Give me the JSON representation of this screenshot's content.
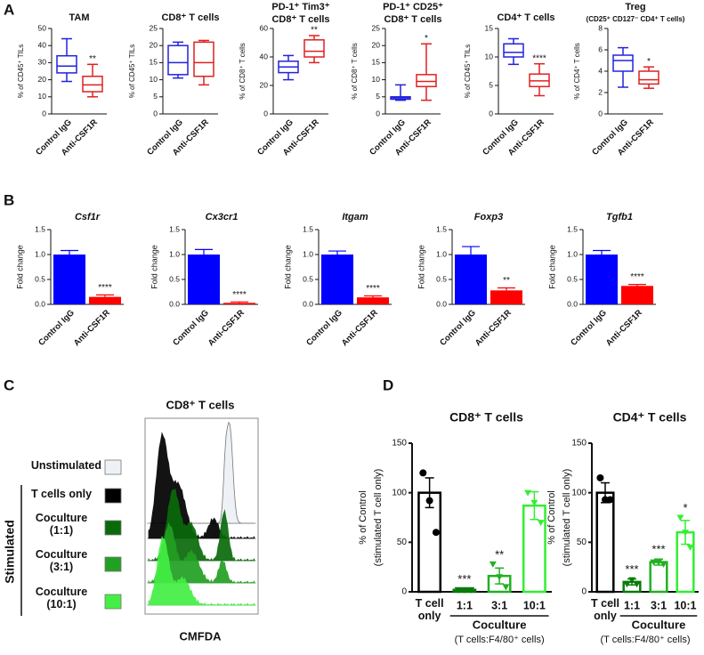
{
  "panel_labels": [
    "A",
    "B",
    "C",
    "D"
  ],
  "chart_data": [
    {
      "type": "box",
      "title": [
        "TAM"
      ],
      "y_label": "% of CD45⁺ TILs",
      "categories": [
        "Control IgG",
        "Anti-CSF1R"
      ],
      "colors": [
        "#2222dd",
        "#e02020"
      ],
      "boxes": [
        {
          "min": 19,
          "q1": 24,
          "median": 28,
          "q3": 34,
          "max": 44
        },
        {
          "min": 10,
          "q1": 13,
          "median": 17,
          "q3": 22,
          "max": 29
        }
      ],
      "significance": [
        null,
        "**"
      ],
      "ylim": [
        0,
        50
      ],
      "yticks": [
        0,
        10,
        20,
        30,
        40,
        50
      ]
    },
    {
      "type": "box",
      "title": [
        "CD8⁺ T cells"
      ],
      "y_label": "% of CD45⁺ TILs",
      "categories": [
        "Control IgG",
        "Anti-CSF1R"
      ],
      "colors": [
        "#2222dd",
        "#e02020"
      ],
      "boxes": [
        {
          "min": 10.5,
          "q1": 11.5,
          "median": 15,
          "q3": 20,
          "max": 21
        },
        {
          "min": 8.5,
          "q1": 11,
          "median": 15,
          "q3": 21,
          "max": 21.5
        }
      ],
      "significance": [
        null,
        null
      ],
      "ylim": [
        0,
        25
      ],
      "yticks": [
        0,
        5,
        10,
        15,
        20,
        25
      ]
    },
    {
      "type": "box",
      "title": [
        "PD-1⁺ Tim3⁺",
        "CD8⁺ T cells"
      ],
      "y_label": "% of CD8⁺ T cells",
      "categories": [
        "Control IgG",
        "Anti-CSF1R"
      ],
      "colors": [
        "#2222dd",
        "#e02020"
      ],
      "boxes": [
        {
          "min": 24,
          "q1": 29,
          "median": 33,
          "q3": 37,
          "max": 41
        },
        {
          "min": 36,
          "q1": 40,
          "median": 44,
          "q3": 52,
          "max": 55
        }
      ],
      "significance": [
        null,
        "**"
      ],
      "ylim": [
        0,
        60
      ],
      "yticks": [
        0,
        20,
        40,
        60
      ]
    },
    {
      "type": "box",
      "title": [
        "PD-1⁺ CD25⁺",
        "CD8⁺ T cells"
      ],
      "y_label": "% of CD8⁺ T cells",
      "categories": [
        "Control IgG",
        "Anti-CSF1R"
      ],
      "colors": [
        "#2222dd",
        "#e02020"
      ],
      "boxes": [
        {
          "min": 4,
          "q1": 4.3,
          "median": 4.7,
          "q3": 5,
          "max": 8.5
        },
        {
          "min": 4,
          "q1": 8,
          "median": 9.5,
          "q3": 11.5,
          "max": 20.5
        }
      ],
      "significance": [
        null,
        "*"
      ],
      "ylim": [
        0,
        25
      ],
      "yticks": [
        0,
        5,
        10,
        15,
        20,
        25
      ]
    },
    {
      "type": "box",
      "title": [
        "CD4⁺ T cells"
      ],
      "y_label": "% of CD45⁺ TILs",
      "categories": [
        "Control IgG",
        "Anti-CSF1R"
      ],
      "colors": [
        "#2222dd",
        "#e02020"
      ],
      "boxes": [
        {
          "min": 8.7,
          "q1": 10,
          "median": 10.8,
          "q3": 12.3,
          "max": 13.2
        },
        {
          "min": 3.2,
          "q1": 4.8,
          "median": 5.8,
          "q3": 7,
          "max": 8.8
        }
      ],
      "significance": [
        null,
        "****"
      ],
      "ylim": [
        0,
        15
      ],
      "yticks": [
        0,
        5,
        10,
        15
      ]
    },
    {
      "type": "box",
      "title": [
        "Treg",
        "(CD25⁺ CD127⁻ CD4⁺ T cells)"
      ],
      "y_label": "% of CD4⁺ T cells",
      "categories": [
        "Control IgG",
        "Anti-CSF1R"
      ],
      "colors": [
        "#2222dd",
        "#e02020"
      ],
      "boxes": [
        {
          "min": 2.5,
          "q1": 4,
          "median": 5,
          "q3": 5.5,
          "max": 6.2
        },
        {
          "min": 2.4,
          "q1": 2.8,
          "median": 3.2,
          "q3": 4,
          "max": 4.4
        }
      ],
      "significance": [
        null,
        "*"
      ],
      "ylim": [
        0,
        8
      ],
      "yticks": [
        0,
        2,
        4,
        6,
        8
      ]
    },
    {
      "type": "bar",
      "title": [
        "Csf1r"
      ],
      "y_label": "Fold change",
      "categories": [
        "Control IgG",
        "Anti-CSF1R"
      ],
      "colors": [
        "#0000ff",
        "#ff0000"
      ],
      "values": [
        1.0,
        0.15
      ],
      "errors": [
        0.08,
        0.04
      ],
      "significance": [
        null,
        "****"
      ],
      "ylim": [
        0,
        1.5
      ],
      "yticks": [
        {
          "value": 0,
          "label": "0.0"
        },
        {
          "value": 0.5,
          "label": "0.5"
        },
        {
          "value": 1,
          "label": "1.0"
        },
        {
          "value": 1.5,
          "label": "1.5"
        }
      ]
    },
    {
      "type": "bar",
      "title": [
        "Cx3cr1"
      ],
      "y_label": "Fold change",
      "categories": [
        "Control IgG",
        "Anti-CSF1R"
      ],
      "colors": [
        "#0000ff",
        "#ff0000"
      ],
      "values": [
        1.0,
        0.03
      ],
      "errors": [
        0.1,
        0.02
      ],
      "significance": [
        null,
        "****"
      ],
      "ylim": [
        0,
        1.5
      ],
      "yticks": [
        {
          "value": 0,
          "label": "0.0"
        },
        {
          "value": 0.5,
          "label": "0.5"
        },
        {
          "value": 1,
          "label": "1.0"
        },
        {
          "value": 1.5,
          "label": "1.5"
        }
      ]
    },
    {
      "type": "bar",
      "title": [
        "Itgam"
      ],
      "y_label": "Fold change",
      "categories": [
        "Control IgG",
        "Anti-CSF1R"
      ],
      "colors": [
        "#0000ff",
        "#ff0000"
      ],
      "values": [
        1.0,
        0.14
      ],
      "errors": [
        0.07,
        0.03
      ],
      "significance": [
        null,
        "****"
      ],
      "ylim": [
        0,
        1.5
      ],
      "yticks": [
        {
          "value": 0,
          "label": "0.0"
        },
        {
          "value": 0.5,
          "label": "0.5"
        },
        {
          "value": 1,
          "label": "1.0"
        },
        {
          "value": 1.5,
          "label": "1.5"
        }
      ]
    },
    {
      "type": "bar",
      "title": [
        "Foxp3"
      ],
      "y_label": "Fold change",
      "categories": [
        "Control IgG",
        "Anti-CSF1R"
      ],
      "colors": [
        "#0000ff",
        "#ff0000"
      ],
      "values": [
        1.0,
        0.28
      ],
      "errors": [
        0.16,
        0.05
      ],
      "significance": [
        null,
        "**"
      ],
      "ylim": [
        0,
        1.5
      ],
      "yticks": [
        {
          "value": 0,
          "label": "0.0"
        },
        {
          "value": 0.5,
          "label": "0.5"
        },
        {
          "value": 1,
          "label": "1.0"
        },
        {
          "value": 1.5,
          "label": "1.5"
        }
      ]
    },
    {
      "type": "bar",
      "title": [
        "Tgfb1"
      ],
      "y_label": "Fold change",
      "categories": [
        "Control IgG",
        "Anti-CSF1R"
      ],
      "colors": [
        "#0000ff",
        "#ff0000"
      ],
      "values": [
        1.0,
        0.37
      ],
      "errors": [
        0.08,
        0.03
      ],
      "significance": [
        null,
        "****"
      ],
      "ylim": [
        0,
        1.5
      ],
      "yticks": [
        {
          "value": 0,
          "label": "0.0"
        },
        {
          "value": 0.5,
          "label": "0.5"
        },
        {
          "value": 1,
          "label": "1.0"
        },
        {
          "value": 1.5,
          "label": "1.5"
        }
      ]
    },
    {
      "type": "flow",
      "title": [
        "CD8⁺ T cells"
      ],
      "x_label": "CMFDA",
      "group_label": "Stimulated",
      "series": [
        {
          "name": "Unstimulated",
          "color": "#eef2f6"
        },
        {
          "name": "T cells only",
          "color": "#000000"
        },
        {
          "name": "Coculture (1:1)",
          "color": "#0a6a0a"
        },
        {
          "name": "Coculture (3:1)",
          "color": "#22a022"
        },
        {
          "name": "Coculture (10:1)",
          "color": "#44ee44"
        }
      ]
    },
    {
      "type": "dotbar",
      "title": [
        "CD8⁺ T cells"
      ],
      "y_label": [
        "% of Control",
        "(stimulated T cell only)"
      ],
      "categories": [
        "T cell only",
        "1:1",
        "3:1",
        "10:1"
      ],
      "colors": [
        "#000000",
        "#0a7a0a",
        "#22b022",
        "#33ee33"
      ],
      "values": [
        100,
        2,
        16,
        87
      ],
      "errors": [
        15,
        1,
        8,
        14
      ],
      "points": [
        [
          120,
          92,
          60
        ],
        [
          2,
          2,
          2
        ],
        [
          28,
          15,
          5
        ],
        [
          100,
          90,
          70
        ]
      ],
      "significance": [
        null,
        "***",
        "**",
        null
      ],
      "group_label": [
        "Coculture",
        "(T cells:F4/80⁺ cells)"
      ],
      "ylim": [
        0,
        150
      ],
      "yticks": [
        0,
        50,
        100,
        150
      ]
    },
    {
      "type": "dotbar",
      "title": [
        "CD4⁺ T cells"
      ],
      "y_label": [
        "% of Control",
        "(stimulated T cell only)"
      ],
      "categories": [
        "T cell only",
        "1:1",
        "3:1",
        "10:1"
      ],
      "colors": [
        "#000000",
        "#0a7a0a",
        "#22b022",
        "#33ee33"
      ],
      "values": [
        100,
        10,
        30,
        60
      ],
      "errors": [
        10,
        3,
        3,
        12
      ],
      "points": [
        [
          115,
          93,
          93
        ],
        [
          8,
          12,
          8
        ],
        [
          30,
          30,
          28
        ],
        [
          75,
          60,
          45
        ]
      ],
      "significance": [
        null,
        "***",
        "***",
        "*"
      ],
      "group_label": [
        "Coculture",
        "(T cells:F4/80⁺ cells)"
      ],
      "ylim": [
        0,
        150
      ],
      "yticks": [
        0,
        50,
        100,
        150
      ]
    }
  ]
}
